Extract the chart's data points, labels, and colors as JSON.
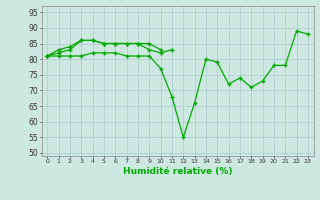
{
  "xlabel": "Humidité relative (%)",
  "background_color": "#cce8e0",
  "grid_color": "#aacccc",
  "line_color": "#00aa00",
  "marker": "+",
  "xlim": [
    -0.5,
    23.5
  ],
  "ylim": [
    49,
    97
  ],
  "xticks": [
    0,
    1,
    2,
    3,
    4,
    5,
    6,
    7,
    8,
    9,
    10,
    11,
    12,
    13,
    14,
    15,
    16,
    17,
    18,
    19,
    20,
    21,
    22,
    23
  ],
  "yticks": [
    50,
    55,
    60,
    65,
    70,
    75,
    80,
    85,
    90,
    95
  ],
  "line1_x": [
    0,
    1,
    2,
    3,
    4,
    5,
    6,
    7,
    8,
    9,
    10
  ],
  "line1_y": [
    81,
    82,
    83,
    86,
    86,
    85,
    85,
    85,
    85,
    85,
    83
  ],
  "line2_x": [
    0,
    1,
    2,
    3,
    4,
    5,
    6,
    7,
    8,
    9,
    10,
    11
  ],
  "line2_y": [
    81,
    83,
    84,
    86,
    86,
    85,
    85,
    85,
    85,
    83,
    82,
    83
  ],
  "line3_x": [
    0,
    1,
    2,
    3,
    4,
    5,
    6,
    7,
    8,
    9,
    10,
    11,
    12,
    13,
    14,
    15,
    16,
    17,
    18,
    19,
    20,
    21,
    22,
    23
  ],
  "line3_y": [
    81,
    81,
    81,
    81,
    82,
    82,
    82,
    81,
    81,
    81,
    77,
    68,
    55,
    66,
    80,
    79,
    72,
    74,
    71,
    73,
    78,
    78,
    89,
    88
  ]
}
